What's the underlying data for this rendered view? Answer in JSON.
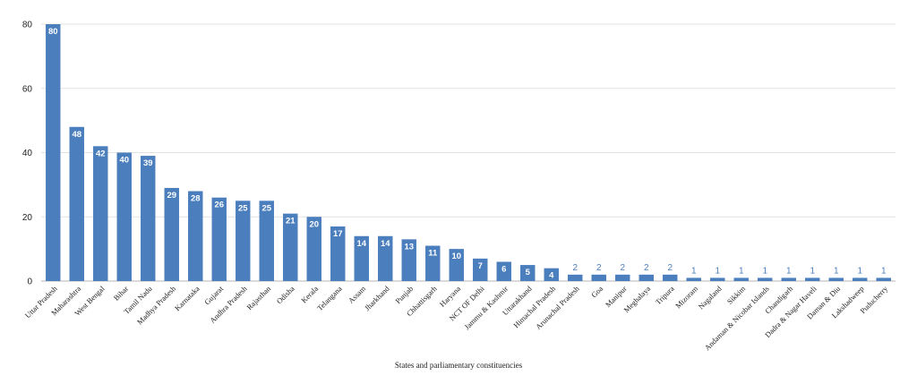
{
  "chart_data": {
    "type": "bar",
    "title": "",
    "xlabel": "States and parliamentary constituencies",
    "ylabel": "",
    "ylim": [
      0,
      80
    ],
    "yticks": [
      0,
      20,
      40,
      60,
      80
    ],
    "grid": true,
    "bar_color": "#4a7ebd",
    "categories": [
      "Uttar Pradesh",
      "Maharashtra",
      "West Bengal",
      "Bihar",
      "Tamil Nadu",
      "Madhya Pradesh",
      "Karnataka",
      "Gujarat",
      "Andhra Pradesh",
      "Rajasthan",
      "Odisha",
      "Kerala",
      "Telangana",
      "Assam",
      "Jharkhand",
      "Punjab",
      "Chhattisgarh",
      "Haryana",
      "NCT OF Delhi",
      "Jammu & Kashmir",
      "Uttarakhand",
      "Himachal Pradesh",
      "Arunachal Pradesh",
      "Goa",
      "Manipur",
      "Meghalaya",
      "Tripura",
      "Mizoram",
      "Nagaland",
      "Sikkim",
      "Andaman & Nicobar Islands",
      "Chandigarh",
      "Dadra & Nagar Haveli",
      "Daman & Diu",
      "Lakshadweep",
      "Puducherry"
    ],
    "values": [
      80,
      48,
      42,
      40,
      39,
      29,
      28,
      26,
      25,
      25,
      21,
      20,
      17,
      14,
      14,
      13,
      11,
      10,
      7,
      6,
      5,
      4,
      2,
      2,
      2,
      2,
      2,
      1,
      1,
      1,
      1,
      1,
      1,
      1,
      1,
      1
    ]
  }
}
